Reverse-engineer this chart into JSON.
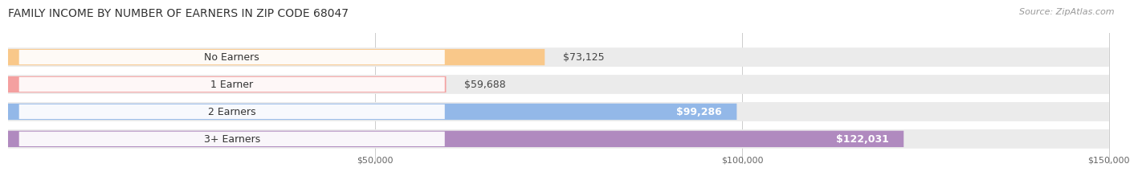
{
  "title": "FAMILY INCOME BY NUMBER OF EARNERS IN ZIP CODE 68047",
  "source": "Source: ZipAtlas.com",
  "categories": [
    "No Earners",
    "1 Earner",
    "2 Earners",
    "3+ Earners"
  ],
  "values": [
    73125,
    59688,
    99286,
    122031
  ],
  "labels": [
    "$73,125",
    "$59,688",
    "$99,286",
    "$122,031"
  ],
  "bar_colors": [
    "#f9c88a",
    "#f4a0a0",
    "#93b8e8",
    "#b08abf"
  ],
  "bar_bg_color": "#ebebeb",
  "xlim_min": 0,
  "xlim_max": 150000,
  "xticks": [
    50000,
    100000,
    150000
  ],
  "xtick_labels": [
    "$50,000",
    "$100,000",
    "$150,000"
  ],
  "title_fontsize": 10,
  "source_fontsize": 8,
  "label_fontsize": 9,
  "category_fontsize": 9,
  "background_color": "#ffffff"
}
